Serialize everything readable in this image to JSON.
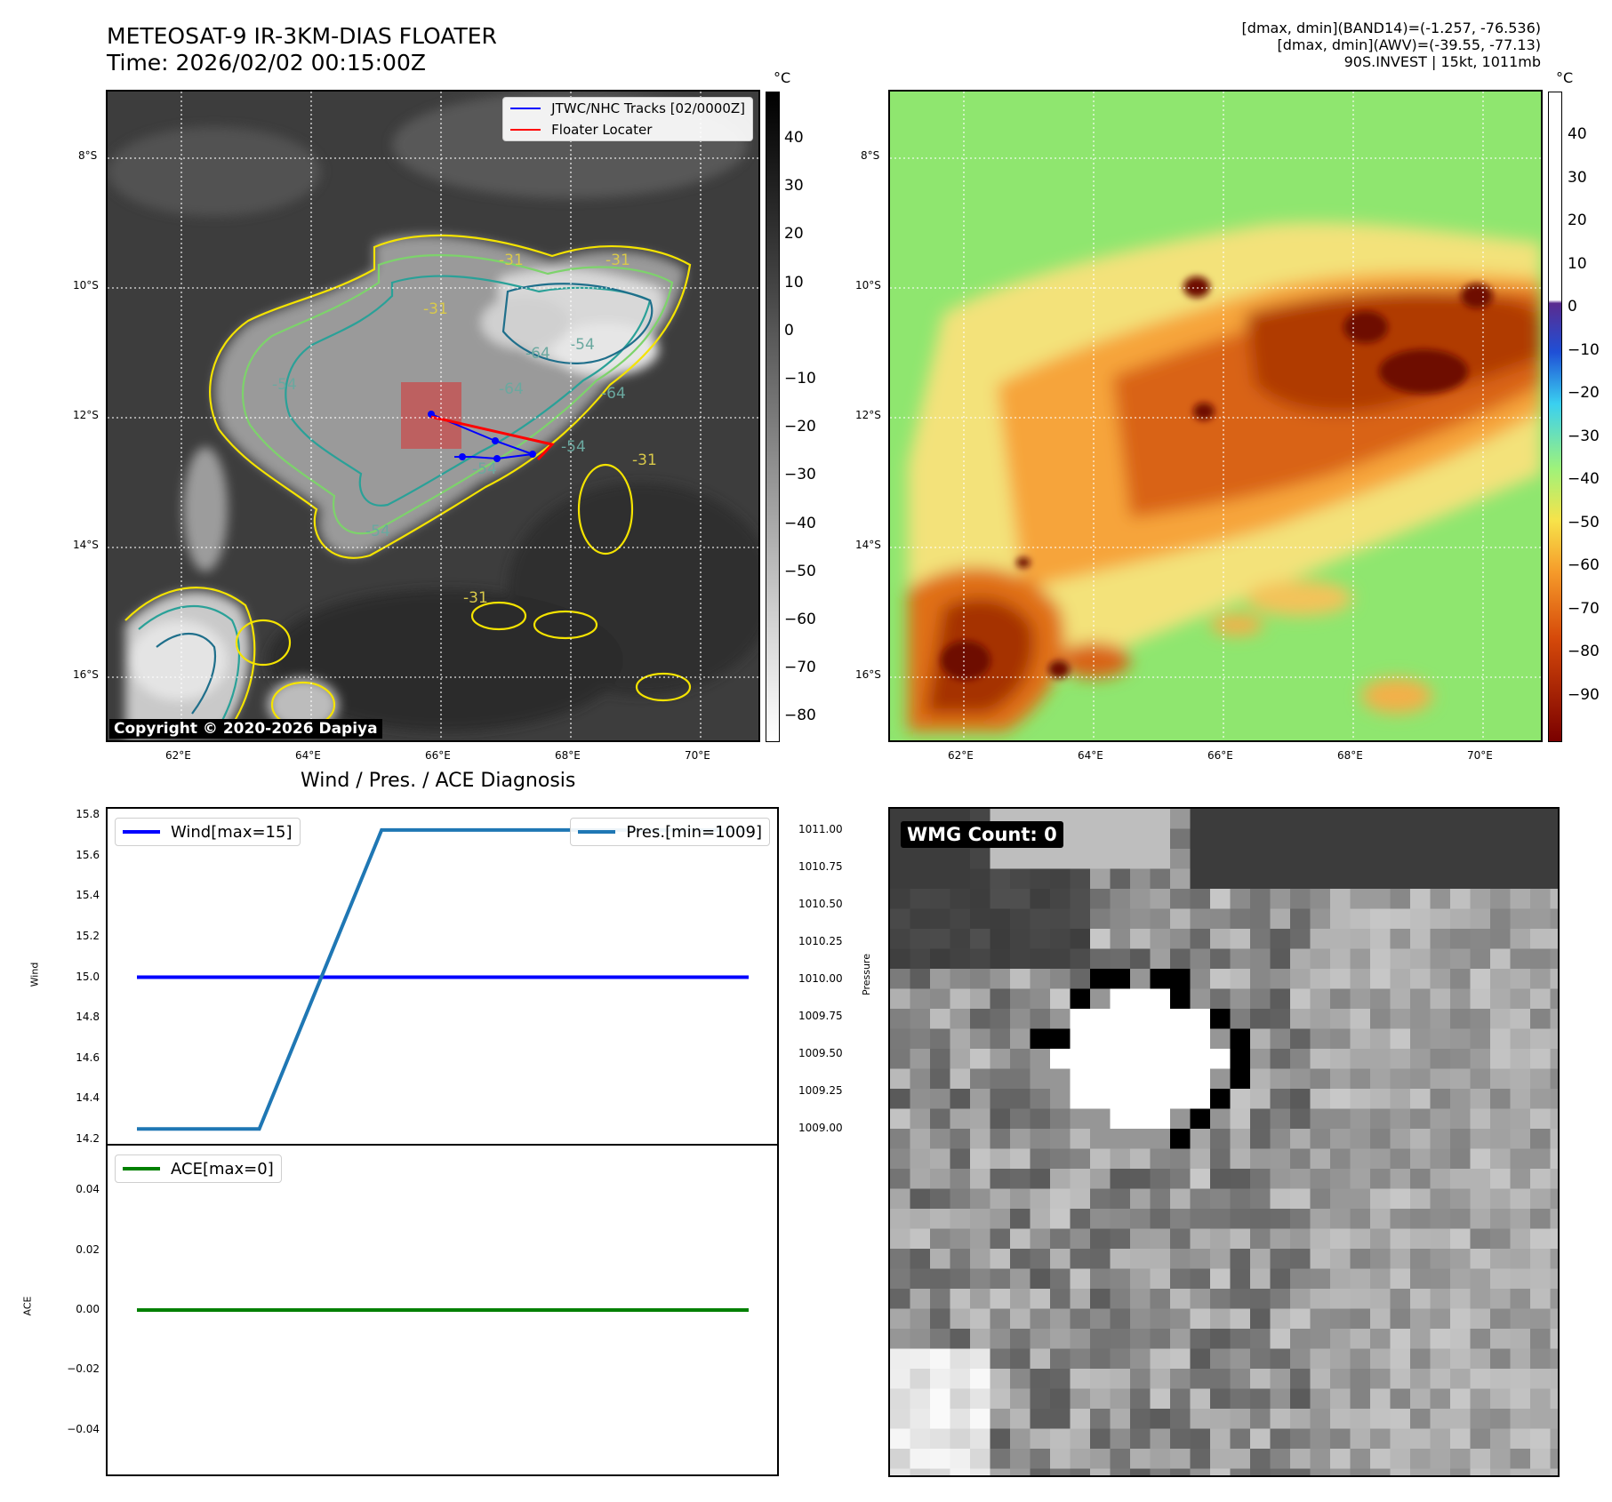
{
  "header": {
    "title_line1": "METEOSAT-9 IR-3KM-DIAS FLOATER",
    "title_line2": "Time: 2026/02/02 00:15:00Z",
    "info_line1": "[dmax, dmin](BAND14)=(-1.257, -76.536)",
    "info_line2": "[dmax, dmin](AWV)=(-39.55, -77.13)",
    "info_line3": "90S.INVEST | 15kt, 1011mb"
  },
  "ir_panel": {
    "copyright": "Copyright © 2020-2026 Dapiya",
    "legend": {
      "tracks_label": "JTWC/NHC Tracks [02/0000Z]",
      "floater_label": "Floater Locater",
      "tracks_color": "#0000ff",
      "floater_color": "#ff0000"
    },
    "contour_labels": [
      "-31",
      "-31",
      "-54",
      "-64",
      "-54",
      "-64",
      "-64",
      "-54",
      "-54",
      "-31",
      "-31",
      "-54",
      "-31"
    ],
    "colorbar_unit": "°C",
    "colorbar_ticks": [
      "40",
      "30",
      "20",
      "10",
      "0",
      "−10",
      "−20",
      "−30",
      "−40",
      "−50",
      "−60",
      "−70",
      "−80"
    ]
  },
  "awv_panel": {
    "colorbar_unit": "°C",
    "colorbar_ticks": [
      "40",
      "30",
      "20",
      "10",
      "0",
      "−10",
      "−20",
      "−30",
      "−40",
      "−50",
      "−60",
      "−70",
      "−80",
      "−90"
    ]
  },
  "map_axes": {
    "lat_ticks": [
      "8°S",
      "10°S",
      "12°S",
      "14°S",
      "16°S"
    ],
    "lon_ticks": [
      "62°E",
      "64°E",
      "66°E",
      "68°E",
      "70°E"
    ]
  },
  "diagnosis": {
    "title": "Wind / Pres. / ACE Diagnosis",
    "wind_ylabel": "Wind",
    "pressure_ylabel": "Pressure",
    "ace_ylabel": "ACE",
    "wind_legend": "Wind[max=15]",
    "pres_legend": "Pres.[min=1009]",
    "ace_legend": "ACE[max=0]",
    "wind_color": "#0000ff",
    "pres_color": "#1f77b4",
    "ace_color": "#008000"
  },
  "chart_data": [
    {
      "type": "line",
      "series": [
        {
          "name": "Wind[max=15]",
          "axis": "left",
          "x": [
            0,
            1,
            2,
            3,
            4,
            5
          ],
          "values": [
            15,
            15,
            15,
            15,
            15,
            15
          ]
        },
        {
          "name": "Pres.[min=1009]",
          "axis": "right",
          "x": [
            0,
            1,
            2,
            3,
            4,
            5
          ],
          "values": [
            1009,
            1009,
            1011,
            1011,
            1011,
            1011
          ]
        }
      ],
      "ylabel": "Wind",
      "y2label": "Pressure",
      "ylim": [
        14.2,
        15.8
      ],
      "y2lim": [
        1008.93,
        1011.1
      ],
      "yticks": [
        "15.8",
        "15.6",
        "15.4",
        "15.2",
        "15.0",
        "14.8",
        "14.6",
        "14.4",
        "14.2"
      ],
      "y2ticks": [
        "1011.00",
        "1010.75",
        "1010.50",
        "1010.25",
        "1010.00",
        "1009.75",
        "1009.50",
        "1009.25",
        "1009.00"
      ],
      "grid": false,
      "legend": "top-left / top-right"
    },
    {
      "type": "line",
      "series": [
        {
          "name": "ACE[max=0]",
          "x": [
            0,
            5
          ],
          "values": [
            0,
            0
          ]
        }
      ],
      "ylabel": "ACE",
      "ylim": [
        -0.055,
        0.055
      ],
      "yticks": [
        "0.04",
        "0.02",
        "0.00",
        "−0.02",
        "−0.04"
      ],
      "grid": false,
      "legend": "top-left"
    }
  ],
  "wmg_panel": {
    "count_label": "WMG Count: 0"
  }
}
